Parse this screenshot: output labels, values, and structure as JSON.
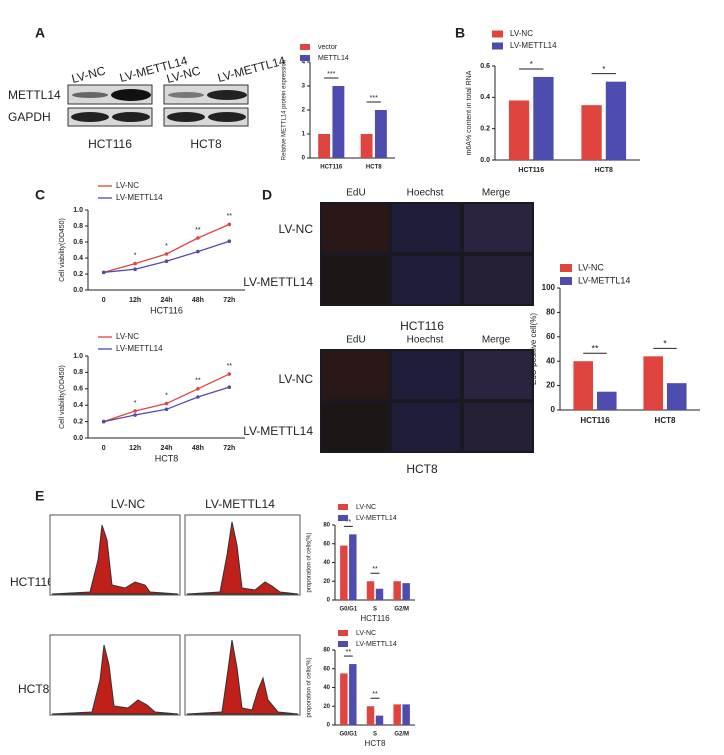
{
  "panel_labels": [
    "A",
    "B",
    "C",
    "D",
    "E"
  ],
  "blot": {
    "lanes": [
      "LV-NC",
      "LV-METTL14",
      "LV-NC",
      "LV-METTL14"
    ],
    "rows": [
      "METTL14",
      "GAPDH"
    ],
    "cell_lines": [
      "HCT116",
      "HCT8"
    ]
  },
  "edu_images": {
    "columns": [
      "EdU",
      "Hoechst",
      "Merge"
    ],
    "rows": [
      "LV-NC",
      "LV-METTL14"
    ],
    "captions": [
      "HCT116",
      "HCT8"
    ]
  },
  "flow": {
    "columns": [
      "LV-NC",
      "LV-METTL14"
    ],
    "rows": [
      "HCT116",
      "HCT8"
    ]
  },
  "chart_data": [
    {
      "type": "bar",
      "y_label": "Relative METTL14 protein expression",
      "categories": [
        "HCT116",
        "HCT8"
      ],
      "series": [
        {
          "name": "vector",
          "color": "#e0443f",
          "values": [
            1.0,
            1.0
          ]
        },
        {
          "name": "METTL14",
          "color": "#4f4cb0",
          "values": [
            3.0,
            2.0
          ]
        }
      ],
      "ylim": [
        0,
        4
      ],
      "yticks": [
        0,
        1,
        2,
        3,
        4
      ],
      "annotations": [
        "***",
        "***"
      ]
    },
    {
      "type": "bar",
      "y_label": "m6A% content in total RNA",
      "categories": [
        "HCT116",
        "HCT8"
      ],
      "series": [
        {
          "name": "LV-NC",
          "color": "#e0443f",
          "values": [
            0.38,
            0.35
          ]
        },
        {
          "name": "LV-METTL14",
          "color": "#4f4cb0",
          "values": [
            0.53,
            0.5
          ]
        }
      ],
      "ylim": [
        0,
        0.6
      ],
      "yticks": [
        {
          "value": 0,
          "label": "0.0"
        },
        0.2,
        0.4,
        0.6
      ],
      "annotations": [
        "*",
        "*"
      ]
    },
    {
      "type": "line",
      "y_label": "Cell viability(OD450)",
      "x_label": "HCT116",
      "categories": [
        "0",
        "12h",
        "24h",
        "48h",
        "72h"
      ],
      "series": [
        {
          "name": "LV-NC",
          "color": "#e0443f",
          "values": [
            0.22,
            0.33,
            0.45,
            0.65,
            0.82
          ]
        },
        {
          "name": "LV-METTL14",
          "color": "#4f4cb0",
          "values": [
            0.22,
            0.26,
            0.36,
            0.48,
            0.61
          ]
        }
      ],
      "ylim": [
        0,
        1
      ],
      "yticks": [
        {
          "value": 0,
          "label": "0.0"
        },
        0.2,
        0.4,
        0.6,
        0.8,
        {
          "value": 1,
          "label": "1.0"
        }
      ],
      "annotations": [
        "*",
        "*",
        "**",
        "**"
      ]
    },
    {
      "type": "line",
      "y_label": "Cell viability(OD450)",
      "x_label": "HCT8",
      "categories": [
        "0",
        "12h",
        "24h",
        "48h",
        "72h"
      ],
      "series": [
        {
          "name": "LV-NC",
          "color": "#e0443f",
          "values": [
            0.2,
            0.33,
            0.42,
            0.6,
            0.78
          ]
        },
        {
          "name": "LV-METTL14",
          "color": "#4f4cb0",
          "values": [
            0.2,
            0.28,
            0.35,
            0.5,
            0.62
          ]
        }
      ],
      "ylim": [
        0,
        1
      ],
      "yticks": [
        {
          "value": 0,
          "label": "0.0"
        },
        0.2,
        0.4,
        0.6,
        0.8,
        {
          "value": 1,
          "label": "1.0"
        }
      ],
      "annotations": [
        "*",
        "*",
        "**",
        "**"
      ]
    },
    {
      "type": "bar",
      "y_label": "EdU-positive cell(%)",
      "categories": [
        "HCT116",
        "HCT8"
      ],
      "series": [
        {
          "name": "LV-NC",
          "color": "#e0443f",
          "values": [
            40,
            44
          ]
        },
        {
          "name": "LV-METTL14",
          "color": "#4f4cb0",
          "values": [
            15,
            22
          ]
        }
      ],
      "ylim": [
        0,
        100
      ],
      "yticks": [
        0,
        20,
        40,
        60,
        80,
        100
      ],
      "annotations": [
        "**",
        "*"
      ]
    },
    {
      "type": "bar",
      "y_label": "proporation of cells(%)",
      "x_label": "HCT116",
      "categories": [
        "G0/G1",
        "S",
        "G2/M"
      ],
      "series": [
        {
          "name": "LV-NC",
          "color": "#e0443f",
          "values": [
            58,
            20,
            20
          ]
        },
        {
          "name": "LV-METTL14",
          "color": "#4f4cb0",
          "values": [
            70,
            12,
            18
          ]
        }
      ],
      "ylim": [
        0,
        80
      ],
      "yticks": [
        0,
        20,
        40,
        60,
        80
      ],
      "annotations": [
        "**",
        "**"
      ]
    },
    {
      "type": "bar",
      "y_label": "proporation of cells(%)",
      "x_label": "HCT8",
      "categories": [
        "G0/G1",
        "S",
        "G2/M"
      ],
      "series": [
        {
          "name": "LV-NC",
          "color": "#e0443f",
          "values": [
            55,
            20,
            22
          ]
        },
        {
          "name": "LV-METTL14",
          "color": "#4f4cb0",
          "values": [
            65,
            10,
            22
          ]
        }
      ],
      "ylim": [
        0,
        80
      ],
      "yticks": [
        0,
        20,
        40,
        60,
        80
      ],
      "annotations": [
        "**",
        "**"
      ]
    }
  ]
}
